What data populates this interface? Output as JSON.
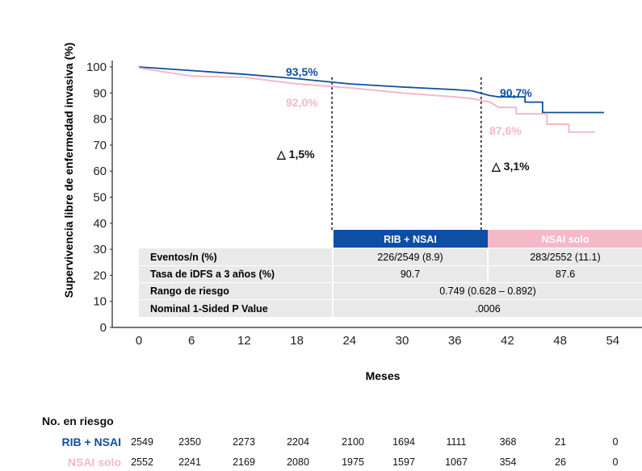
{
  "chart_data": {
    "type": "line",
    "title": "",
    "ylabel": "Supervivencia libre de enfermedad invasiva (%)",
    "xlabel": "Meses",
    "ylim": [
      0,
      100
    ],
    "xlim": [
      0,
      54
    ],
    "x_ticks": [
      "0",
      "6",
      "12",
      "18",
      "24",
      "30",
      "36",
      "42",
      "48",
      "54"
    ],
    "y_ticks": [
      "0",
      "10",
      "20",
      "30",
      "40",
      "50",
      "60",
      "70",
      "80",
      "90",
      "100"
    ],
    "series": [
      {
        "name": "RIB + NSAI",
        "color": "#0e4ea3",
        "x": [
          0,
          6,
          12,
          18,
          24,
          30,
          36,
          38,
          40,
          41,
          44,
          46,
          48,
          50,
          53
        ],
        "y": [
          100,
          98.6,
          97.2,
          95.5,
          93.5,
          92.3,
          91.3,
          90.8,
          89,
          88.5,
          86.5,
          82.5,
          82.5,
          82.5,
          82.5
        ],
        "step_after": 40
      },
      {
        "name": "NSAI solo",
        "color": "#f4b8c9",
        "x": [
          0,
          6,
          12,
          18,
          24,
          30,
          36,
          38,
          40,
          41,
          43,
          46,
          46.5,
          48.5,
          49,
          52
        ],
        "y": [
          99.6,
          96.5,
          96,
          93.5,
          92,
          90,
          88.5,
          87.8,
          86.5,
          84.5,
          82,
          82,
          78,
          78,
          75,
          75
        ]
      }
    ],
    "reference_lines": [
      {
        "x": 22,
        "label": ""
      },
      {
        "x": 39,
        "label": ""
      }
    ],
    "annotations": {
      "rib_36m": "93,5%",
      "nsai_36m": "92,0%",
      "delta_36m": "△ 1,5%",
      "rib_end": "90,7%",
      "nsai_end": "87,6%",
      "delta_end": "△ 3,1%"
    },
    "table": {
      "headers": [
        "RIB + NSAI",
        "NSAI solo"
      ],
      "rows": [
        {
          "label": "Eventos/n (%)",
          "rib": "226/2549 (8.9)",
          "nsai": "283/2552 (11.1)"
        },
        {
          "label": "Tasa de iDFS a 3 años (%)",
          "rib": "90.7",
          "nsai": "87.6"
        },
        {
          "label": "Rango de riesgo",
          "merged": "0.749 (0.628 – 0.892)"
        },
        {
          "label": "Nominal 1-Sided P Value",
          "merged": ".0006"
        }
      ]
    },
    "at_risk": {
      "title": "No. en riesgo",
      "rows": [
        {
          "name": "RIB + NSAI",
          "color": "#0e4ea3",
          "values": [
            "2549",
            "2350",
            "2273",
            "2204",
            "2100",
            "1694",
            "1111",
            "368",
            "21",
            "0"
          ]
        },
        {
          "name": "NSAI solo",
          "color": "#f4b8c9",
          "values": [
            "2552",
            "2241",
            "2169",
            "2080",
            "1975",
            "1597",
            "1067",
            "354",
            "26",
            "0"
          ]
        }
      ]
    }
  }
}
